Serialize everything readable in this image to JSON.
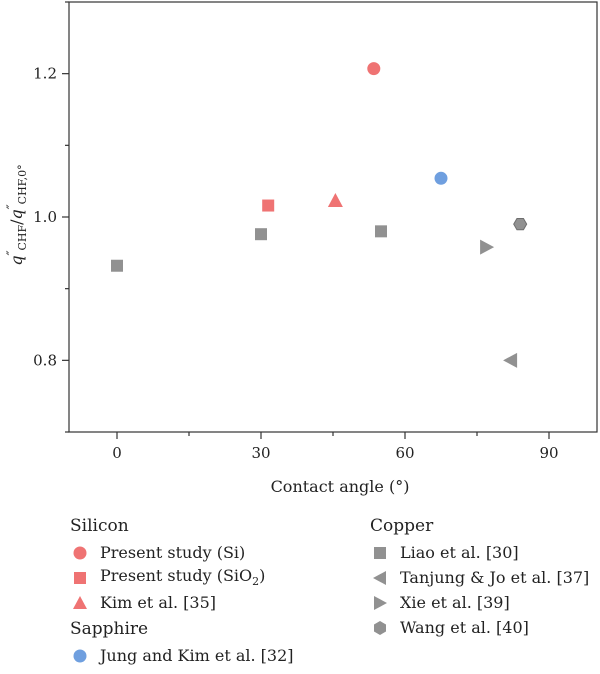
{
  "chart_data": {
    "type": "scatter",
    "xlabel": "Contact angle (°)",
    "ylabel": {
      "q1": "q",
      "prime1": "″",
      "sub1": "CHF",
      "slash": "/",
      "q2": "q",
      "prime2": "″",
      "sub2": "CHF,0°"
    },
    "xlim": [
      -10,
      100
    ],
    "ylim": [
      0.7,
      1.3
    ],
    "xticks": [
      0,
      30,
      60,
      90
    ],
    "yticks": [
      0.8,
      1.0,
      1.2
    ],
    "xtick_labels": [
      "0",
      "30",
      "60",
      "90"
    ],
    "ytick_labels": [
      "0.8",
      "1.0",
      "1.2"
    ],
    "grid": false,
    "series": [
      {
        "name": "Present study (Si)",
        "group": "Silicon",
        "marker": "circle",
        "color": "#ef7373",
        "points": [
          {
            "x": 53.5,
            "y": 1.207
          }
        ]
      },
      {
        "name": "Present study (SiO2)",
        "group": "Silicon",
        "marker": "square",
        "color": "#ef7373",
        "points": [
          {
            "x": 31.5,
            "y": 1.016
          }
        ]
      },
      {
        "name": "Kim et al. [35]",
        "group": "Silicon",
        "marker": "triangle-up",
        "color": "#ef7373",
        "points": [
          {
            "x": 45.5,
            "y": 1.023
          }
        ]
      },
      {
        "name": "Jung and Kim et al. [32]",
        "group": "Sapphire",
        "marker": "circle",
        "color": "#6f9fdf",
        "points": [
          {
            "x": 67.5,
            "y": 1.054
          }
        ]
      },
      {
        "name": "Liao et al. [30]",
        "group": "Copper",
        "marker": "square",
        "color": "#919191",
        "points": [
          {
            "x": 0,
            "y": 0.932
          },
          {
            "x": 30,
            "y": 0.976
          },
          {
            "x": 55,
            "y": 0.98
          }
        ]
      },
      {
        "name": "Tanjung & Jo et al. [37]",
        "group": "Copper",
        "marker": "triangle-left",
        "color": "#919191",
        "points": [
          {
            "x": 82,
            "y": 0.8
          }
        ]
      },
      {
        "name": "Xie et al. [39]",
        "group": "Copper",
        "marker": "triangle-right",
        "color": "#919191",
        "points": [
          {
            "x": 77,
            "y": 0.958
          }
        ]
      },
      {
        "name": "Wang et al. [40]",
        "group": "Copper",
        "marker": "hexagon",
        "color": "#919191",
        "points": [
          {
            "x": 84,
            "y": 0.99
          }
        ]
      }
    ]
  },
  "legend": {
    "placement": "bottom",
    "groups": [
      {
        "title": "Silicon",
        "items": [
          {
            "label": "Present study (Si)",
            "marker": "circle",
            "color": "#ef7373"
          },
          {
            "label": "Present study (SiO",
            "sub": "2",
            "tail": ")",
            "marker": "square",
            "color": "#ef7373"
          },
          {
            "label": "Kim et al. [35]",
            "marker": "triangle-up",
            "color": "#ef7373"
          }
        ]
      },
      {
        "title": "Sapphire",
        "items": [
          {
            "label": "Jung and Kim et al. [32]",
            "marker": "circle",
            "color": "#6f9fdf"
          }
        ]
      },
      {
        "title": "Copper",
        "items": [
          {
            "label": "Liao et al. [30]",
            "marker": "square",
            "color": "#919191"
          },
          {
            "label": "Tanjung & Jo et al. [37]",
            "marker": "triangle-left",
            "color": "#919191"
          },
          {
            "label": "Xie et al. [39]",
            "marker": "triangle-right",
            "color": "#919191"
          },
          {
            "label": "Wang et al. [40]",
            "marker": "hexagon",
            "color": "#919191"
          }
        ]
      }
    ]
  }
}
